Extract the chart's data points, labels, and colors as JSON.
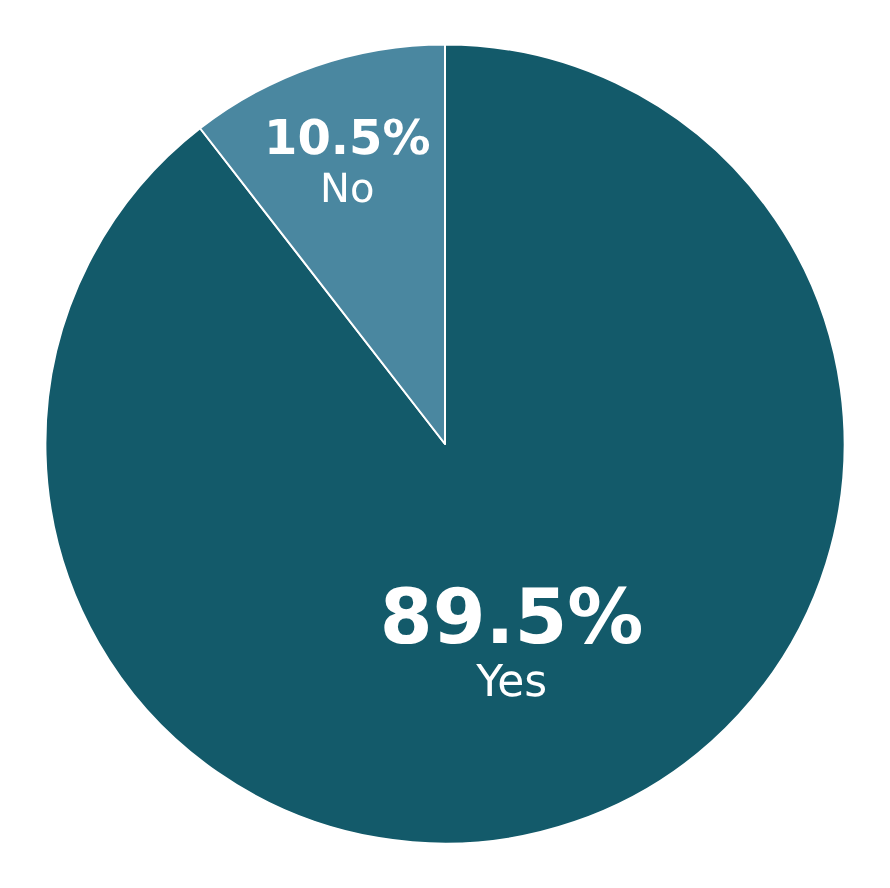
{
  "chart_data": {
    "type": "pie",
    "categories": [
      "Yes",
      "No"
    ],
    "values": [
      89.5,
      10.5
    ],
    "colors": [
      "#135a6a",
      "#4a87a0"
    ],
    "value_labels": [
      "89.5%",
      "10.5%"
    ],
    "legend": false
  }
}
